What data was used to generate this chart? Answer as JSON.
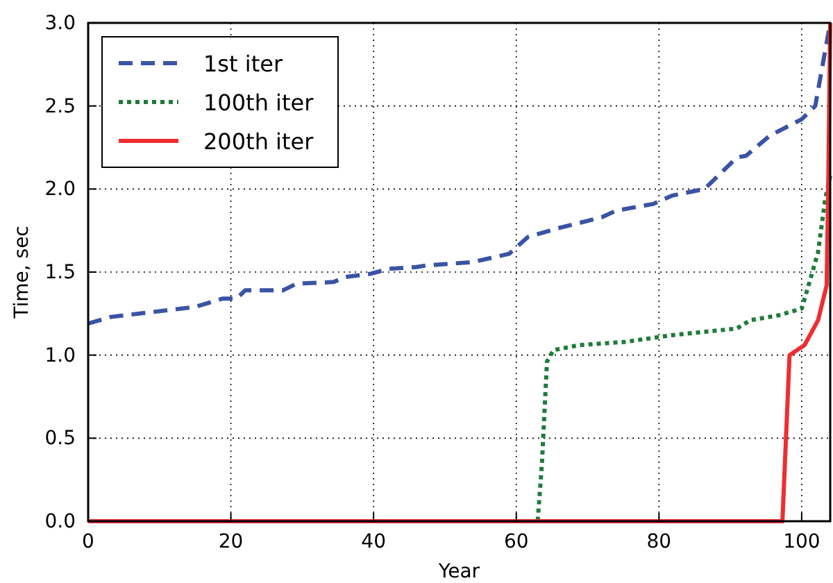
{
  "chart_data": {
    "type": "line",
    "xlabel": "Year",
    "ylabel": "Time, sec",
    "xlim": [
      0,
      104
    ],
    "ylim": [
      0,
      3
    ],
    "xticks": [
      0,
      20,
      40,
      60,
      80,
      100
    ],
    "yticks": [
      {
        "value": 0,
        "label": "0.0"
      },
      {
        "value": 0.5,
        "label": "0.5"
      },
      {
        "value": 1,
        "label": "1.0"
      },
      {
        "value": 1.5,
        "label": "1.5"
      },
      {
        "value": 2,
        "label": "2.0"
      },
      {
        "value": 2.5,
        "label": "2.5"
      },
      {
        "value": 3,
        "label": "3.0"
      }
    ],
    "grid": true,
    "legend": "top left",
    "marker": "none",
    "series": [
      {
        "name": "1st iter",
        "color": "#3a53a4",
        "line_style": "dashed",
        "x": [
          0,
          3.2,
          15,
          18.8,
          20.8,
          22,
          27.3,
          29.2,
          34.4,
          36,
          39.6,
          42.2,
          46,
          47.4,
          53.9,
          59,
          61.6,
          65.5,
          72,
          74,
          79.2,
          81.8,
          86.4,
          90.9,
          92.2,
          95.5,
          100,
          101.9,
          104
        ],
        "values": [
          1.19,
          1.23,
          1.29,
          1.34,
          1.34,
          1.39,
          1.39,
          1.43,
          1.44,
          1.47,
          1.49,
          1.52,
          1.53,
          1.54,
          1.56,
          1.61,
          1.71,
          1.76,
          1.83,
          1.87,
          1.91,
          1.96,
          2.0,
          2.19,
          2.2,
          2.32,
          2.42,
          2.5,
          3.0
        ]
      },
      {
        "name": "100th iter",
        "color": "#1e7b3a",
        "line_style": "dotted",
        "x": [
          0,
          63,
          63.6,
          64.3,
          65.2,
          68.8,
          75.3,
          81.8,
          90.9,
          92.8,
          96.8,
          100,
          101.3,
          102.3,
          103.3,
          104
        ],
        "values": [
          0,
          0,
          0.35,
          0.96,
          1.03,
          1.06,
          1.08,
          1.12,
          1.16,
          1.21,
          1.24,
          1.28,
          1.47,
          1.62,
          1.94,
          2.08
        ]
      },
      {
        "name": "200th iter",
        "color": "#ee2e31",
        "line_style": "solid",
        "x": [
          0,
          97.3,
          98.3,
          100.4,
          102.3,
          103.5,
          103.7,
          104
        ],
        "values": [
          0,
          0,
          1.0,
          1.06,
          1.21,
          1.42,
          1.94,
          3.0
        ]
      }
    ]
  }
}
